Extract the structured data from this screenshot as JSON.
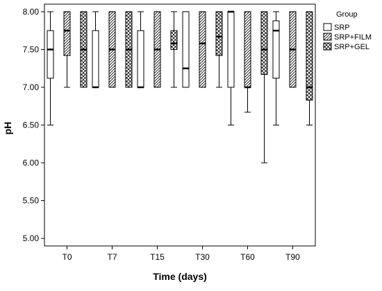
{
  "chart_data": {
    "type": "boxplot",
    "xlabel": "Time (days)",
    "ylabel": "pH",
    "ylim": [
      4.9,
      8.1
    ],
    "yticks": [
      "5.00",
      "5.50",
      "6.00",
      "6.50",
      "7.00",
      "7.50",
      "8.00"
    ],
    "categories": [
      "T0",
      "T7",
      "T15",
      "T30",
      "T60",
      "T90"
    ],
    "legend": {
      "title": "Group",
      "placement": "right"
    },
    "series": [
      {
        "name": "SRP",
        "pattern": "none",
        "boxes": [
          {
            "min": 6.5,
            "q1": 7.12,
            "median": 7.5,
            "q3": 7.75,
            "max": 8.0
          },
          {
            "min": 7.0,
            "q1": 7.0,
            "median": 7.0,
            "q3": 7.75,
            "max": 8.0
          },
          {
            "min": 7.0,
            "q1": 7.0,
            "median": 7.0,
            "q3": 7.75,
            "max": 8.0
          },
          {
            "min": 7.0,
            "q1": 7.0,
            "median": 7.25,
            "q3": 8.0,
            "max": 8.0
          },
          {
            "min": 6.5,
            "q1": 7.0,
            "median": 8.0,
            "q3": 8.0,
            "max": 8.0
          },
          {
            "min": 6.5,
            "q1": 7.12,
            "median": 7.75,
            "q3": 7.88,
            "max": 8.0
          }
        ]
      },
      {
        "name": "SRP+FILM",
        "pattern": "diagonal",
        "boxes": [
          {
            "min": 7.0,
            "q1": 7.42,
            "median": 7.75,
            "q3": 8.0,
            "max": 8.0
          },
          {
            "min": 7.0,
            "q1": 7.0,
            "median": 7.5,
            "q3": 8.0,
            "max": 8.0
          },
          {
            "min": 7.0,
            "q1": 7.0,
            "median": 7.5,
            "q3": 8.0,
            "max": 8.0
          },
          {
            "min": 7.0,
            "q1": 7.0,
            "median": 7.58,
            "q3": 8.0,
            "max": 8.0
          },
          {
            "min": 6.67,
            "q1": 7.0,
            "median": 7.0,
            "q3": 8.0,
            "max": 8.0
          },
          {
            "min": 7.0,
            "q1": 7.0,
            "median": 7.5,
            "q3": 8.0,
            "max": 8.0
          }
        ]
      },
      {
        "name": "SRP+GEL",
        "pattern": "crosshatch",
        "boxes": [
          {
            "min": 7.0,
            "q1": 7.0,
            "median": 7.5,
            "q3": 8.0,
            "max": 8.0
          },
          {
            "min": 7.0,
            "q1": 7.0,
            "median": 7.5,
            "q3": 8.0,
            "max": 8.0
          },
          {
            "min": 7.0,
            "q1": 7.5,
            "median": 7.58,
            "q3": 7.75,
            "max": 8.0
          },
          {
            "min": 7.0,
            "q1": 7.42,
            "median": 7.67,
            "q3": 8.0,
            "max": 8.0
          },
          {
            "min": 6.0,
            "q1": 7.17,
            "median": 7.5,
            "q3": 8.0,
            "max": 8.0
          },
          {
            "min": 6.5,
            "q1": 6.83,
            "median": 7.0,
            "q3": 8.0,
            "max": 8.0
          }
        ]
      }
    ]
  }
}
